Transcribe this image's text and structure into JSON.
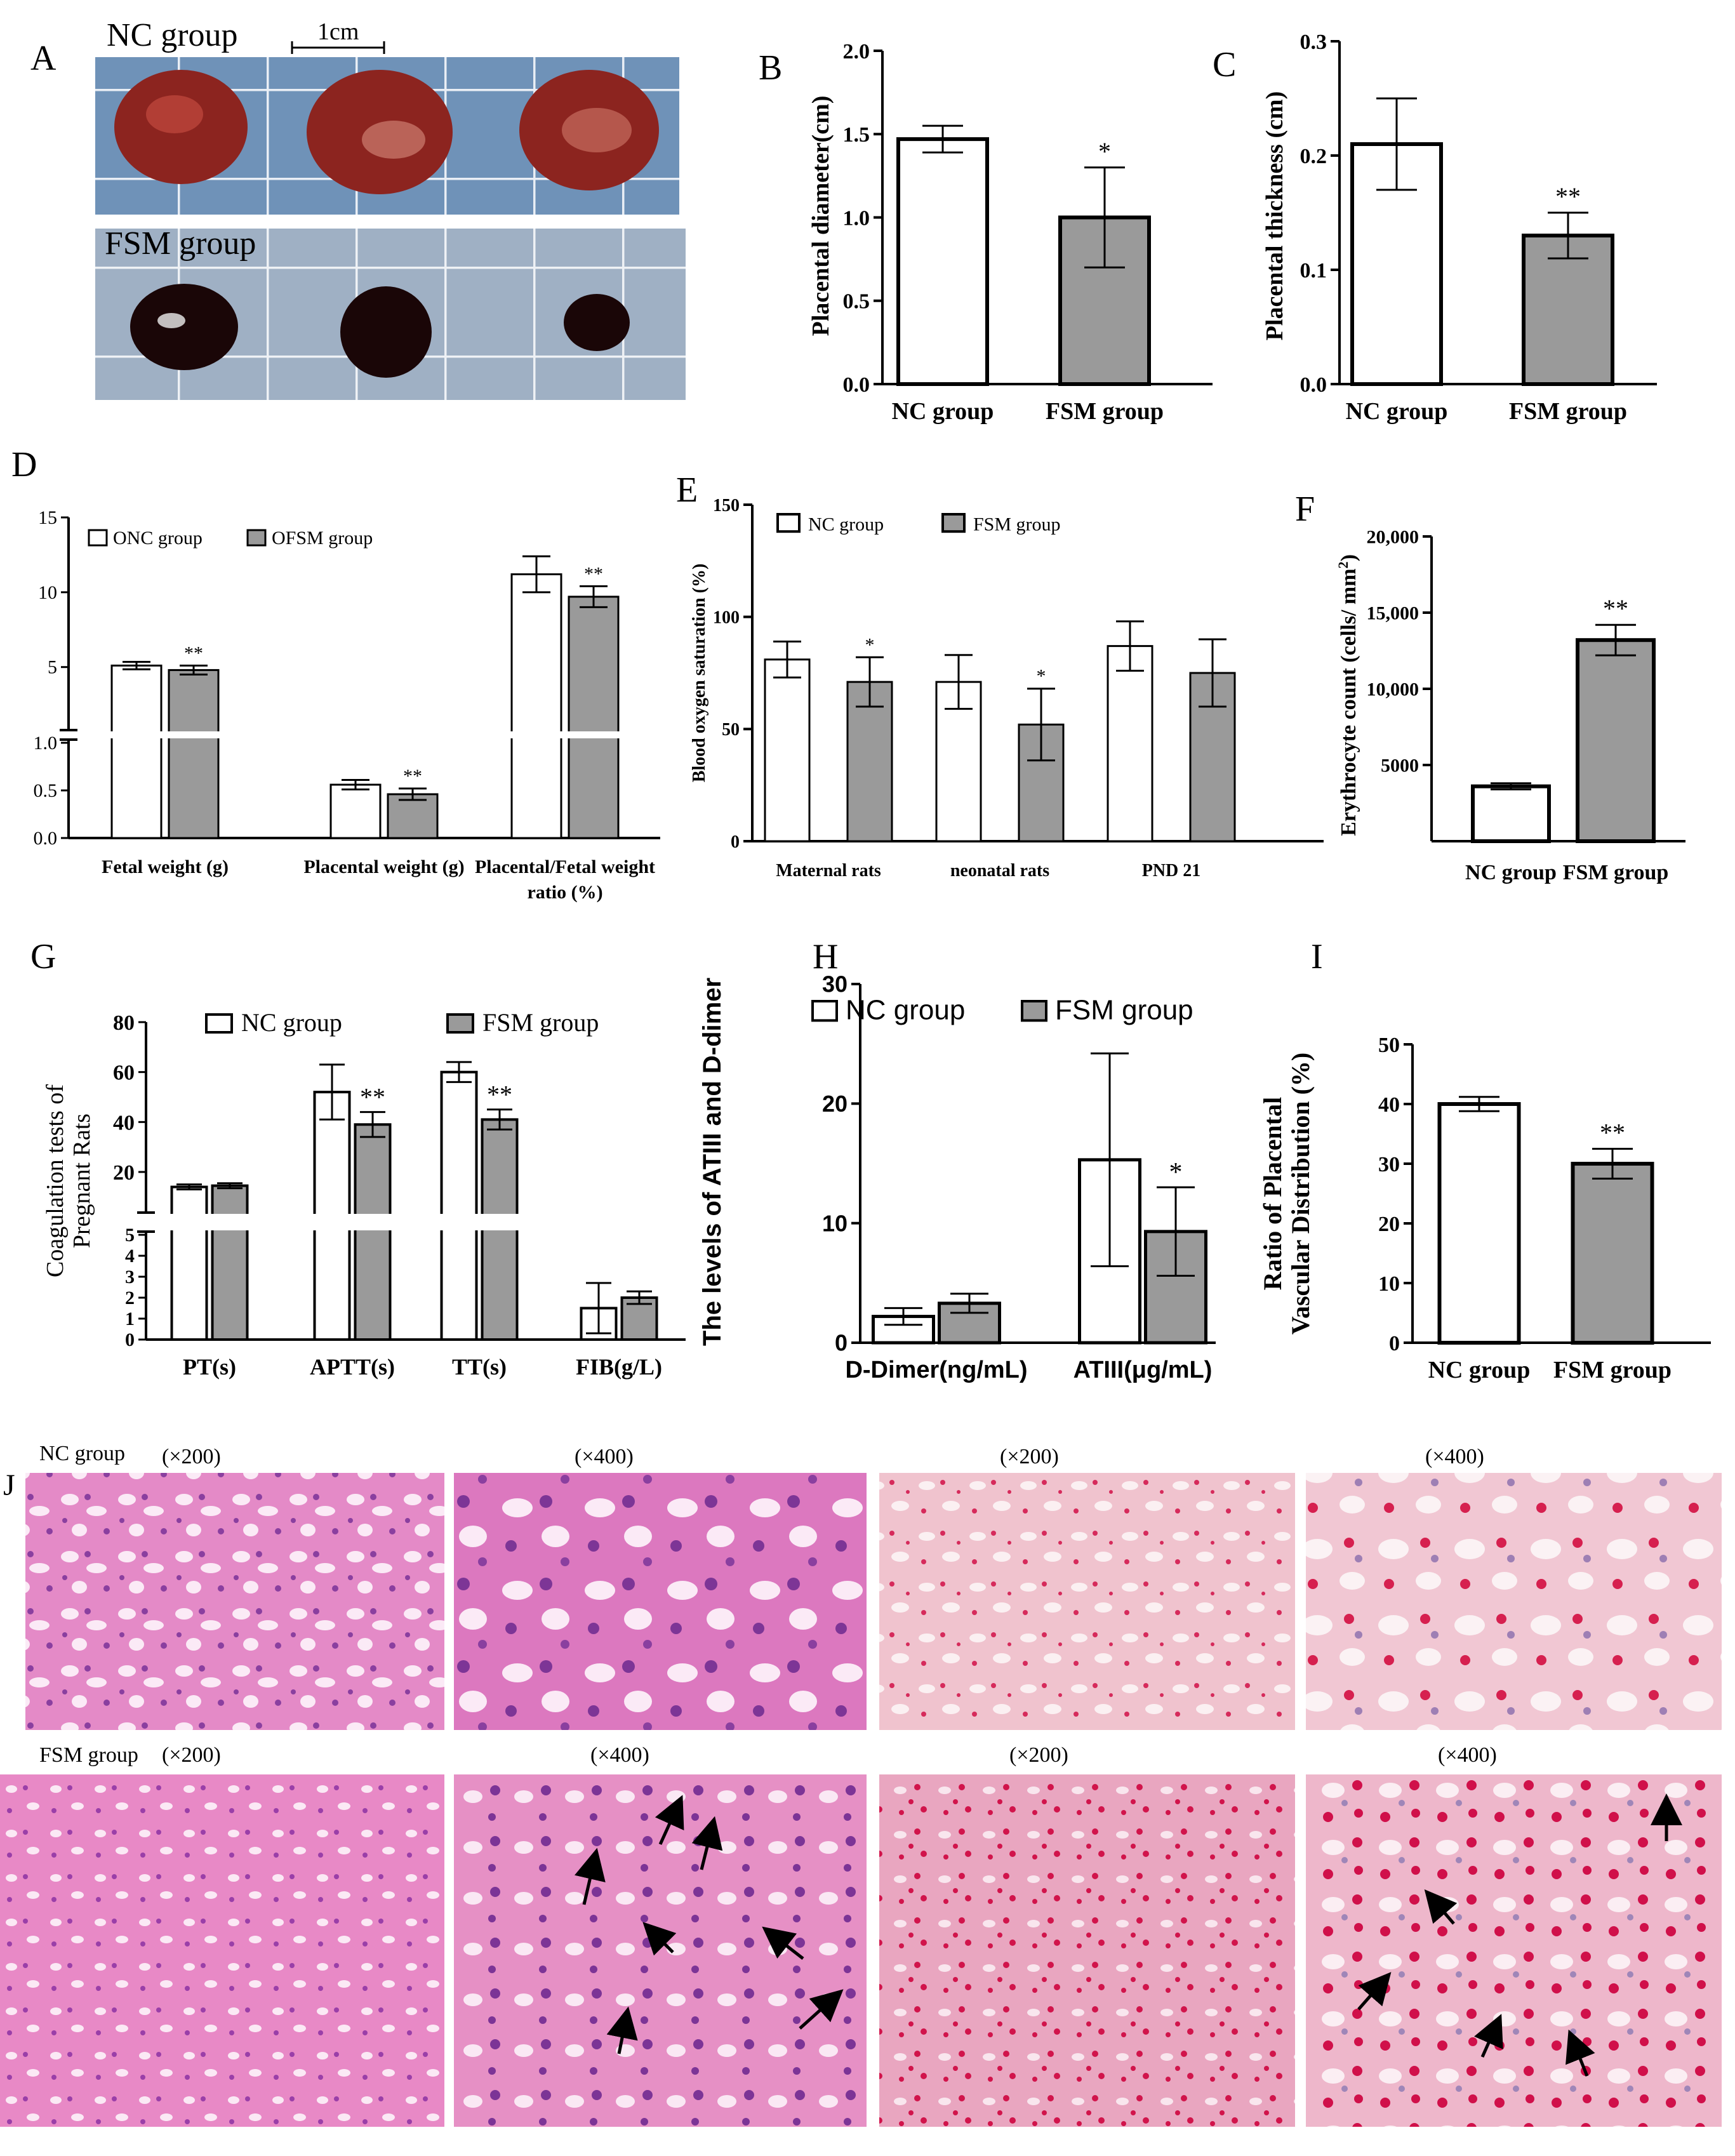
{
  "colors": {
    "nc": "#ffffff",
    "fsm": "#9a9a9a",
    "stroke": "#000000"
  },
  "panel_letters": [
    "A",
    "B",
    "C",
    "D",
    "E",
    "F",
    "G",
    "H",
    "I",
    "J"
  ],
  "photo_panel": {
    "nc_label": "NC group",
    "fsm_label": "FSM group",
    "scale_label": "1cm"
  },
  "chart_data": [
    {
      "id": "B",
      "type": "bar",
      "categories": [
        "NC group",
        "FSM group"
      ],
      "values": [
        1.47,
        1.0
      ],
      "errors": [
        0.08,
        0.3
      ],
      "significance": [
        "",
        "*"
      ],
      "ylabel": "Placental diameter(cm)",
      "ylim": [
        0,
        2.0
      ],
      "yticks": [
        "0.0",
        "0.5",
        "1.0",
        "1.5",
        "2.0"
      ],
      "ytick_values": [
        0,
        0.5,
        1.0,
        1.5,
        2.0
      ]
    },
    {
      "id": "C",
      "type": "bar",
      "categories": [
        "NC group",
        "FSM group"
      ],
      "values": [
        0.21,
        0.13
      ],
      "errors": [
        0.04,
        0.02
      ],
      "significance": [
        "",
        "**"
      ],
      "ylabel": "Placental thickness (cm)",
      "ylim": [
        0,
        0.3
      ],
      "yticks": [
        "0.0",
        "0.1",
        "0.2",
        "0.3"
      ],
      "ytick_values": [
        0,
        0.1,
        0.2,
        0.3
      ]
    },
    {
      "id": "D",
      "type": "bar",
      "broken_axis": true,
      "categories": [
        "Fetal weight (g)",
        "Placental weight (g)",
        "Placental/Fetal weight ratio (%)"
      ],
      "series": [
        {
          "name": "ONC group",
          "values": [
            5.1,
            0.56,
            11.2
          ],
          "errors": [
            0.25,
            0.05,
            1.2
          ],
          "significance": [
            "",
            "",
            ""
          ]
        },
        {
          "name": "OFSM group",
          "values": [
            4.8,
            0.46,
            9.7
          ],
          "errors": [
            0.3,
            0.06,
            0.7
          ],
          "significance": [
            "**",
            "**",
            "**"
          ]
        }
      ],
      "ylabel": "",
      "lower_range": [
        0,
        1.0
      ],
      "lower_ticks": [
        "0.0",
        "0.5",
        "1.0"
      ],
      "lower_tick_values": [
        0,
        0.5,
        1.0
      ],
      "upper_range": [
        1.0,
        15
      ],
      "upper_ticks": [
        "5",
        "10",
        "15"
      ],
      "upper_tick_values": [
        5,
        10,
        15
      ],
      "legend_position": "top-left"
    },
    {
      "id": "E",
      "type": "bar",
      "categories": [
        "Maternal rats",
        "neonatal rats",
        "PND 21"
      ],
      "series": [
        {
          "name": "NC group",
          "values": [
            81,
            71,
            87
          ],
          "errors": [
            8,
            12,
            11
          ],
          "significance": [
            "",
            "",
            ""
          ]
        },
        {
          "name": "FSM group",
          "values": [
            71,
            52,
            75
          ],
          "errors": [
            11,
            16,
            15
          ],
          "significance": [
            "*",
            "*",
            ""
          ]
        }
      ],
      "ylabel": "Blood oxygen saturation (%)",
      "ylim": [
        0,
        150
      ],
      "yticks": [
        "0",
        "50",
        "100",
        "150"
      ],
      "ytick_values": [
        0,
        50,
        100,
        150
      ],
      "legend_position": "top-left"
    },
    {
      "id": "F",
      "type": "bar",
      "categories": [
        "NC group",
        "FSM group"
      ],
      "values": [
        3600,
        13200
      ],
      "errors": [
        200,
        1000
      ],
      "significance": [
        "",
        "**"
      ],
      "ylabel": "Erythrocyte count (cells/ mm",
      "ylabel_sup": "2",
      "ylabel_end": ")",
      "ylim": [
        0,
        20000
      ],
      "yticks": [
        "5000",
        "10,000",
        "15,000",
        "20,000"
      ],
      "ytick_values": [
        5000,
        10000,
        15000,
        20000
      ]
    },
    {
      "id": "G",
      "type": "bar",
      "broken_axis": true,
      "categories": [
        "PT(s)",
        "APTT(s)",
        "TT(s)",
        "FIB(g/L)"
      ],
      "series": [
        {
          "name": "NC group",
          "values": [
            14,
            52,
            60,
            1.5
          ],
          "errors": [
            1,
            11,
            4,
            1.2
          ],
          "significance": [
            "",
            "",
            "",
            ""
          ]
        },
        {
          "name": "FSM group",
          "values": [
            14.5,
            39,
            41,
            2.0
          ],
          "errors": [
            1,
            5,
            4,
            0.3
          ],
          "significance": [
            "",
            "**",
            "**",
            ""
          ]
        }
      ],
      "ylabel": "Coagulation tests of Pregnant Rats",
      "ylabel_lines": [
        "Coagulation tests of",
        "Pregnant Rats"
      ],
      "lower_range": [
        0,
        5
      ],
      "lower_ticks": [
        "0",
        "1",
        "2",
        "3",
        "4",
        "5"
      ],
      "lower_tick_values": [
        0,
        1,
        2,
        3,
        4,
        5
      ],
      "upper_range": [
        5,
        80
      ],
      "upper_ticks": [
        "20",
        "40",
        "60",
        "80"
      ],
      "upper_tick_values": [
        20,
        40,
        60,
        80
      ],
      "legend_position": "top"
    },
    {
      "id": "H",
      "type": "bar",
      "categories": [
        "D-Dimer(ng/mL)",
        "ATIII(μg/mL)"
      ],
      "series": [
        {
          "name": "NC group",
          "values": [
            2.2,
            15.3
          ],
          "errors": [
            0.7,
            8.9
          ],
          "significance": [
            "",
            ""
          ]
        },
        {
          "name": "FSM group",
          "values": [
            3.3,
            9.3
          ],
          "errors": [
            0.8,
            3.7
          ],
          "significance": [
            "",
            "*"
          ]
        }
      ],
      "ylabel": "The levels of ATIII and D-dimer",
      "ylim": [
        0,
        30
      ],
      "yticks": [
        "0",
        "10",
        "20",
        "30"
      ],
      "ytick_values": [
        0,
        10,
        20,
        30
      ],
      "legend_position": "top"
    },
    {
      "id": "I",
      "type": "bar",
      "categories": [
        "NC group",
        "FSM group"
      ],
      "values": [
        40,
        30
      ],
      "errors": [
        1.2,
        2.5
      ],
      "significance": [
        "",
        "**"
      ],
      "ylabel": "Ratio of Placental Vascular Distribution (%)",
      "ylabel_lines": [
        "Ratio of Placental",
        "Vascular Distribution (%)"
      ],
      "ylim": [
        0,
        50
      ],
      "yticks": [
        "0",
        "10",
        "20",
        "30",
        "40",
        "50"
      ],
      "ytick_values": [
        0,
        10,
        20,
        30,
        40,
        50
      ]
    }
  ],
  "histology": {
    "row1_label": "NC group",
    "row2_label": "FSM group",
    "magnifications": [
      "(×200)",
      "(×400)",
      "(×200)",
      "(×400)"
    ]
  }
}
